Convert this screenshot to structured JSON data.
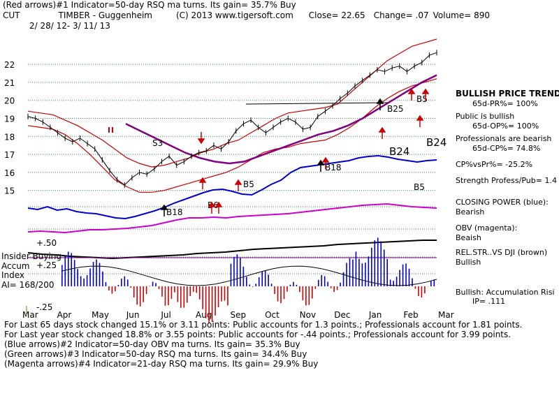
{
  "header": {
    "line1": "(Red arrows)#1 Indicator=50-day RSQ ma turns. Its gain= 35.7% Buy",
    "ticker": "CUT",
    "title": "TIMBER - Guggenheim",
    "copyright": "(C) 2013 www.tigersoft.com",
    "close": "Close= 22.65",
    "change": "Change= .07",
    "volume": "Volume= 890",
    "daterange": "2/ 28/ 12- 3/ 11/ 13"
  },
  "sidebar": {
    "trend_title": "BULLISH PRICE TREND",
    "pr": "65d-PR%= 100%",
    "public": "Public is bullish",
    "op": "65d-OP%= 100%",
    "pros": "Professionals are bearish",
    "cp": "65d-CP%= 74.8%",
    "cpvspr": "CP%vsPr%= -25.2%",
    "strength": "Strength Profess/Pub= 1.4",
    "cp_label": "CLOSING POWER (blue):",
    "cp_value": "Bearish",
    "obv_label": "OBV (magenta):",
    "obv_value": "Beaish",
    "rel_label": "REL.STR..VS DJI (brown)",
    "rel_value": "Bullish",
    "accum": "Bullish: Accumulation Risi",
    "ip": "IP= .111"
  },
  "footer": {
    "l1": "For Last 65 days stock changed 15.1% or 3.11 points: Public accounts for 1.3 points.; Professionals account for 1.81 points.",
    "l2": "For Last year stock changed 18.8% or 3.55 points: Public accounts for -.44 points.; Professionals account for 3.99 points.",
    "l3": "(Blue arrows)#2 Indicator=50-day OBV ma turns. Its gain= 35.3% Buy",
    "l4": "(Green arrows)#3 Indicator=50-day RSQ ma turns. Its gain= 34.4% Buy",
    "l5": "(Magenta arrows)#4 Indicator=21-day RSQ ma turns. Its gain= 29.9% Buy"
  },
  "colors": {
    "price": "#000000",
    "band": "#cc0000",
    "ma": "#800080",
    "cp": "#0000cc",
    "obv": "#cc00cc",
    "grid": "#2e8b57",
    "accum_pos": "#0000cc",
    "accum_neg": "#cc0000",
    "rel": "#5a2d0c"
  },
  "chart_data": {
    "type": "line",
    "title": "TIMBER - Guggenheim",
    "ylim": [
      14.6,
      23.4
    ],
    "price_ticks": [
      22,
      21,
      20,
      19,
      18,
      17,
      16,
      15
    ],
    "months": [
      "Mar",
      "Apr",
      "May",
      "Jun",
      "Jul",
      "Aug",
      "Sep",
      "Oct",
      "Nov",
      "Dec",
      "Jan",
      "Feb",
      "Mar"
    ],
    "close": [
      19.1,
      19.0,
      18.8,
      18.5,
      18.2,
      17.9,
      17.7,
      17.9,
      17.6,
      17.3,
      16.7,
      16.1,
      15.6,
      15.3,
      15.7,
      16.0,
      15.9,
      16.2,
      16.6,
      16.9,
      16.4,
      16.6,
      16.9,
      17.1,
      17.2,
      17.5,
      17.3,
      17.7,
      18.3,
      18.7,
      18.9,
      18.5,
      18.2,
      18.5,
      18.8,
      19.0,
      18.8,
      18.4,
      18.5,
      19.1,
      19.4,
      19.7,
      20.1,
      20.4,
      20.8,
      21.1,
      21.4,
      21.7,
      21.6,
      21.8,
      21.9,
      21.6,
      21.9,
      22.1,
      22.5,
      22.65
    ],
    "upper_band": [
      19.4,
      19.3,
      19.2,
      18.9,
      18.6,
      18.2,
      17.8,
      17.3,
      16.8,
      16.5,
      16.3,
      16.4,
      16.6,
      16.8,
      17.1,
      17.3,
      17.6,
      17.8,
      18.2,
      18.6,
      19.0,
      19.3,
      19.4,
      19.5,
      19.6,
      19.8,
      20.4,
      21.0,
      21.6,
      22.2,
      22.6,
      23.0,
      23.2,
      23.4
    ],
    "lower_band": [
      18.6,
      18.5,
      18.4,
      18.1,
      17.6,
      17.0,
      16.3,
      15.6,
      15.2,
      14.9,
      14.9,
      15.0,
      15.2,
      15.4,
      15.6,
      15.8,
      16.0,
      16.3,
      16.7,
      17.1,
      17.3,
      17.4,
      17.6,
      17.7,
      17.8,
      18.1,
      18.5,
      19.0,
      19.6,
      20.1,
      20.5,
      20.8,
      21.0,
      21.2
    ],
    "ma50": [
      18.7,
      18.3,
      17.9,
      17.5,
      17.1,
      16.8,
      16.6,
      16.5,
      16.6,
      16.9,
      17.2,
      17.5,
      17.8,
      18.1,
      18.3,
      18.6,
      19.0,
      19.5,
      20.0,
      20.5,
      21.0,
      21.4
    ]
  },
  "labels": {
    "s3": "S3",
    "b24a": "B24",
    "b24b": "B24",
    "b25": "B25",
    "b5a": "B5",
    "b5b": "B5",
    "b5c": "B5",
    "b18a": "B18",
    "b18b": "B18",
    "b6": "B6",
    "insider": "Insider Buying",
    "accum_word": "Accum",
    "index_word": "Index",
    "ai": "AI= 168/200",
    "p50": "+.50",
    "p25": "+.25",
    "m25": "-.25"
  }
}
